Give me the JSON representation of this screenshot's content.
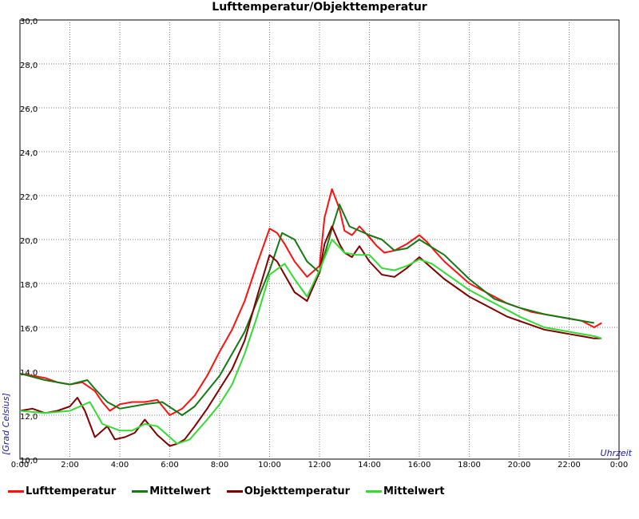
{
  "chart_data": {
    "type": "line",
    "title": "Lufttemperatur/Objekttemperatur",
    "xlabel": "Uhrzeit",
    "ylabel": "[Grad Celsius]",
    "xlim": [
      0,
      24
    ],
    "ylim": [
      10,
      30
    ],
    "grid": true,
    "x_ticks": [
      "0:00",
      "2:00",
      "4:00",
      "6:00",
      "8:00",
      "10:00",
      "12:00",
      "14:00",
      "16:00",
      "18:00",
      "20:00",
      "22:00",
      "0:00"
    ],
    "y_ticks": [
      "10,0",
      "12,0",
      "14,0",
      "16,0",
      "18,0",
      "20,0",
      "22,0",
      "24,0",
      "26,0",
      "28,0",
      "30,0"
    ],
    "legend_position": "bottom",
    "series": [
      {
        "name": "Lufttemperatur",
        "color": "#ff1010",
        "x": [
          0,
          0.5,
          1,
          1.5,
          2,
          2.5,
          3,
          3.3,
          3.6,
          4,
          4.5,
          5,
          5.5,
          6,
          6.5,
          7,
          7.5,
          8,
          8.5,
          9,
          9.5,
          10,
          10.3,
          10.6,
          11,
          11.5,
          12,
          12.2,
          12.5,
          12.8,
          13,
          13.3,
          13.6,
          14,
          14.3,
          14.6,
          15,
          15.5,
          16,
          16.3,
          16.6,
          17,
          17.5,
          18,
          18.5,
          19,
          19.5,
          20,
          20.5,
          21,
          21.5,
          22,
          22.5,
          23,
          23.3
        ],
        "values": [
          13.9,
          13.8,
          13.7,
          13.5,
          13.4,
          13.5,
          13.1,
          12.6,
          12.2,
          12.5,
          12.6,
          12.6,
          12.7,
          12.0,
          12.3,
          12.9,
          13.8,
          14.9,
          15.9,
          17.2,
          18.9,
          20.5,
          20.3,
          19.8,
          19.0,
          18.3,
          18.8,
          21.0,
          22.3,
          21.4,
          20.4,
          20.2,
          20.6,
          20.1,
          19.7,
          19.4,
          19.5,
          19.8,
          20.2,
          19.9,
          19.5,
          19.0,
          18.5,
          18.0,
          17.7,
          17.4,
          17.1,
          16.9,
          16.7,
          16.6,
          16.5,
          16.4,
          16.3,
          16.0,
          16.2
        ]
      },
      {
        "name": "Mittelwert",
        "color": "#147814",
        "x": [
          0,
          1,
          2,
          2.7,
          3,
          3.5,
          4,
          5,
          5.7,
          6.5,
          7,
          8,
          9,
          10,
          10.5,
          11,
          11.5,
          12,
          12.5,
          12.8,
          13.2,
          14,
          14.5,
          15,
          15.5,
          16,
          17,
          18,
          19,
          20,
          21,
          22,
          23
        ],
        "values": [
          13.9,
          13.6,
          13.4,
          13.6,
          13.2,
          12.6,
          12.3,
          12.5,
          12.6,
          12.0,
          12.4,
          13.8,
          15.8,
          18.6,
          20.3,
          20.0,
          19.0,
          18.5,
          20.5,
          21.6,
          20.6,
          20.2,
          20.0,
          19.5,
          19.6,
          20.0,
          19.3,
          18.2,
          17.3,
          16.9,
          16.6,
          16.4,
          16.2
        ]
      },
      {
        "name": "Objekttemperatur",
        "color": "#800000",
        "x": [
          0,
          0.5,
          1,
          1.5,
          2,
          2.3,
          2.6,
          3,
          3.5,
          3.8,
          4.2,
          4.6,
          5,
          5.5,
          6,
          6.3,
          6.6,
          7,
          7.5,
          8,
          8.5,
          9,
          9.5,
          10,
          10.3,
          10.6,
          11,
          11.5,
          12,
          12.2,
          12.5,
          12.8,
          13,
          13.3,
          13.6,
          14,
          14.5,
          15,
          15.5,
          16,
          16.5,
          17,
          17.5,
          18,
          18.5,
          19,
          19.5,
          20,
          20.5,
          21,
          21.5,
          22,
          22.5,
          23,
          23.3
        ],
        "values": [
          12.2,
          12.3,
          12.1,
          12.2,
          12.4,
          12.8,
          12.2,
          11.0,
          11.5,
          10.9,
          11.0,
          11.2,
          11.8,
          11.1,
          10.6,
          10.7,
          10.9,
          11.5,
          12.3,
          13.2,
          14.1,
          15.4,
          17.4,
          19.3,
          19.0,
          18.4,
          17.6,
          17.2,
          18.5,
          19.8,
          20.6,
          19.8,
          19.4,
          19.2,
          19.7,
          19.0,
          18.4,
          18.3,
          18.7,
          19.2,
          18.7,
          18.2,
          17.8,
          17.4,
          17.1,
          16.8,
          16.5,
          16.3,
          16.1,
          15.9,
          15.8,
          15.7,
          15.6,
          15.5,
          15.5
        ]
      },
      {
        "name": "Mittelwert",
        "color": "#32dc32",
        "x": [
          0,
          1,
          2,
          2.8,
          3.3,
          4,
          4.5,
          5,
          5.5,
          6.3,
          6.8,
          7.5,
          8,
          8.5,
          9,
          9.5,
          10,
          10.6,
          11,
          11.5,
          12,
          12.5,
          13,
          13.5,
          14,
          14.5,
          15,
          15.5,
          16,
          16.5,
          17,
          18,
          19,
          20,
          21,
          22,
          23,
          23.3
        ],
        "values": [
          12.2,
          12.1,
          12.2,
          12.6,
          11.6,
          11.3,
          11.3,
          11.6,
          11.5,
          10.7,
          10.9,
          11.8,
          12.5,
          13.4,
          14.8,
          16.5,
          18.4,
          18.9,
          18.2,
          17.4,
          18.6,
          20.0,
          19.4,
          19.3,
          19.3,
          18.7,
          18.6,
          18.8,
          19.1,
          18.9,
          18.5,
          17.7,
          17.1,
          16.5,
          16.0,
          15.8,
          15.6,
          15.5
        ]
      }
    ]
  }
}
